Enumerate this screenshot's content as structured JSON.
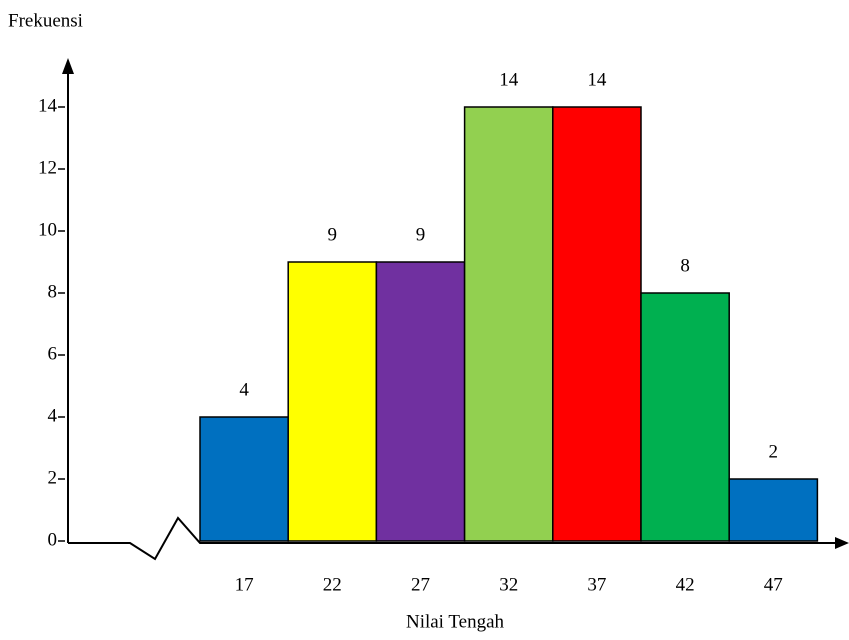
{
  "chart_data": {
    "type": "bar",
    "y_label": "Frekuensi",
    "x_label": "Nilai Tengah",
    "categories": [
      "17",
      "22",
      "27",
      "32",
      "37",
      "42",
      "47"
    ],
    "values": [
      4,
      9,
      9,
      14,
      14,
      8,
      2
    ],
    "colors": [
      "#0070c0",
      "#ffff00",
      "#7030a0",
      "#92d050",
      "#ff0000",
      "#00b050",
      "#0070c0"
    ],
    "ylim": [
      0,
      14
    ],
    "yticks": [
      0,
      2,
      4,
      6,
      8,
      10,
      12,
      14
    ]
  }
}
